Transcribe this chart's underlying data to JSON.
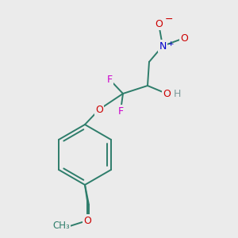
{
  "background_color": "#ebebeb",
  "bond_color": "#2e7d6b",
  "atom_colors": {
    "F": "#cc00cc",
    "O": "#cc0000",
    "N": "#0000cc",
    "H": "#7a9a9a",
    "C": "#2e7d6b"
  },
  "figsize": [
    3.0,
    3.0
  ],
  "dpi": 100,
  "bond_lw": 1.4
}
